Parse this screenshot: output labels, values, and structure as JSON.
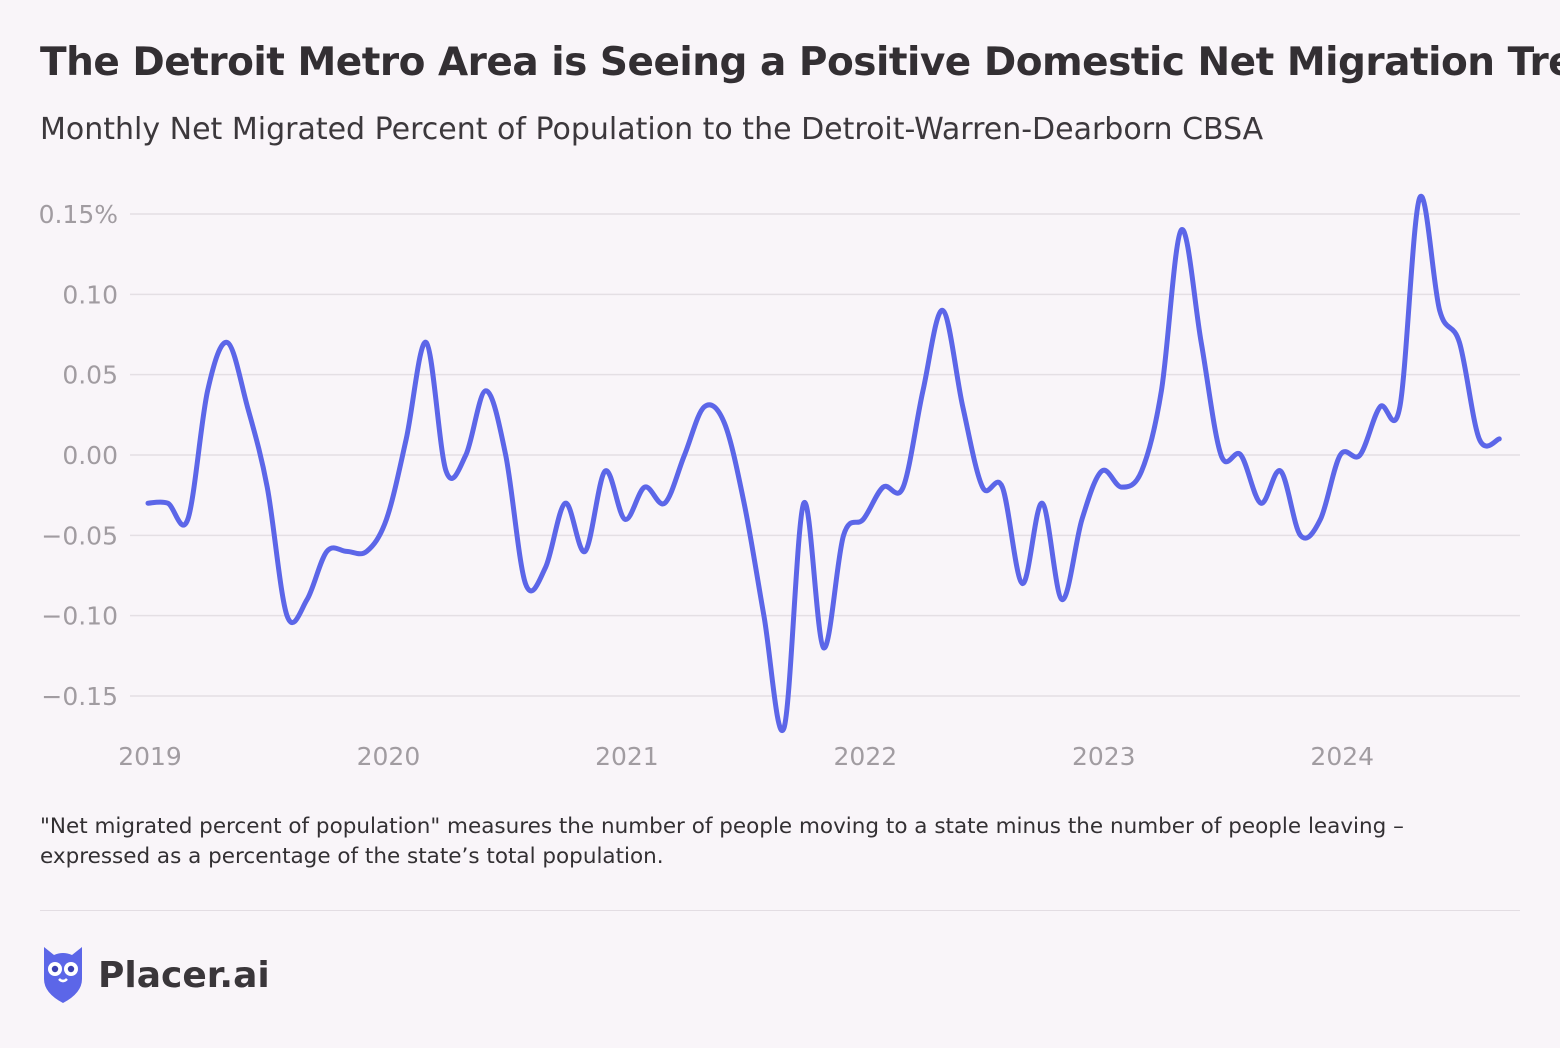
{
  "title": "The Detroit Metro Area is Seeing a Positive Domestic Net Migration Trend",
  "subtitle": "Monthly Net Migrated Percent of Population to the Detroit-Warren-Dearborn CBSA",
  "footnote": {
    "line1": "\"Net migrated percent of population\" measures the number of people moving to a state minus the number of people leaving –",
    "line2": "expressed as a percentage of the state’s total population."
  },
  "brand": {
    "name": "Placer.ai",
    "logo_icon": "owl-logo-icon"
  },
  "colors": {
    "line": "#5c66e8",
    "grid": "#e4dfe4",
    "tick": "#a19ca1",
    "background": "#f9f5f9"
  },
  "chart_data": {
    "type": "line",
    "title": "The Detroit Metro Area is Seeing a Positive Domestic Net Migration Trend",
    "xlabel": "",
    "ylabel": "Net migrated percent of population",
    "ylim": [
      -0.17,
      0.16
    ],
    "xlim": [
      2019.0,
      2024.67
    ],
    "grid": true,
    "y_ticks": [
      {
        "value": 0.15,
        "label": "0.15%"
      },
      {
        "value": 0.1,
        "label": "0.10"
      },
      {
        "value": 0.05,
        "label": "0.05"
      },
      {
        "value": 0.0,
        "label": "0.00"
      },
      {
        "value": -0.05,
        "label": "−0.05"
      },
      {
        "value": -0.1,
        "label": "−0.10"
      },
      {
        "value": -0.15,
        "label": "−0.15"
      }
    ],
    "x_ticks": [
      {
        "value": 2019,
        "label": "2019"
      },
      {
        "value": 2020,
        "label": "2020"
      },
      {
        "value": 2021,
        "label": "2021"
      },
      {
        "value": 2022,
        "label": "2022"
      },
      {
        "value": 2023,
        "label": "2023"
      },
      {
        "value": 2024,
        "label": "2024"
      }
    ],
    "series": [
      {
        "name": "Detroit-Warren-Dearborn CBSA",
        "x": [
          2019.0,
          2019.083,
          2019.167,
          2019.25,
          2019.333,
          2019.417,
          2019.5,
          2019.583,
          2019.667,
          2019.75,
          2019.833,
          2019.917,
          2020.0,
          2020.083,
          2020.167,
          2020.25,
          2020.333,
          2020.417,
          2020.5,
          2020.583,
          2020.667,
          2020.75,
          2020.833,
          2020.917,
          2021.0,
          2021.083,
          2021.167,
          2021.25,
          2021.333,
          2021.417,
          2021.5,
          2021.583,
          2021.667,
          2021.75,
          2021.833,
          2021.917,
          2022.0,
          2022.083,
          2022.167,
          2022.25,
          2022.333,
          2022.417,
          2022.5,
          2022.583,
          2022.667,
          2022.75,
          2022.833,
          2022.917,
          2023.0,
          2023.083,
          2023.167,
          2023.25,
          2023.333,
          2023.417,
          2023.5,
          2023.583,
          2023.667,
          2023.75,
          2023.833,
          2023.917,
          2024.0,
          2024.083,
          2024.167,
          2024.25,
          2024.333,
          2024.417,
          2024.5,
          2024.583,
          2024.667
        ],
        "values": [
          -0.03,
          -0.03,
          -0.04,
          0.04,
          0.07,
          0.03,
          -0.02,
          -0.1,
          -0.09,
          -0.06,
          -0.06,
          -0.06,
          -0.04,
          0.01,
          0.07,
          -0.01,
          0.0,
          0.04,
          0.0,
          -0.08,
          -0.07,
          -0.03,
          -0.06,
          -0.01,
          -0.04,
          -0.02,
          -0.03,
          0.0,
          0.03,
          0.02,
          -0.03,
          -0.1,
          -0.17,
          -0.03,
          -0.12,
          -0.05,
          -0.04,
          -0.02,
          -0.02,
          0.04,
          0.09,
          0.03,
          -0.02,
          -0.02,
          -0.08,
          -0.03,
          -0.09,
          -0.04,
          -0.01,
          -0.02,
          -0.01,
          0.04,
          0.14,
          0.07,
          0.0,
          0.0,
          -0.03,
          -0.01,
          -0.05,
          -0.04,
          0.0,
          0.0,
          0.03,
          0.03,
          0.16,
          0.09,
          0.07,
          0.01,
          0.01
        ]
      }
    ]
  }
}
